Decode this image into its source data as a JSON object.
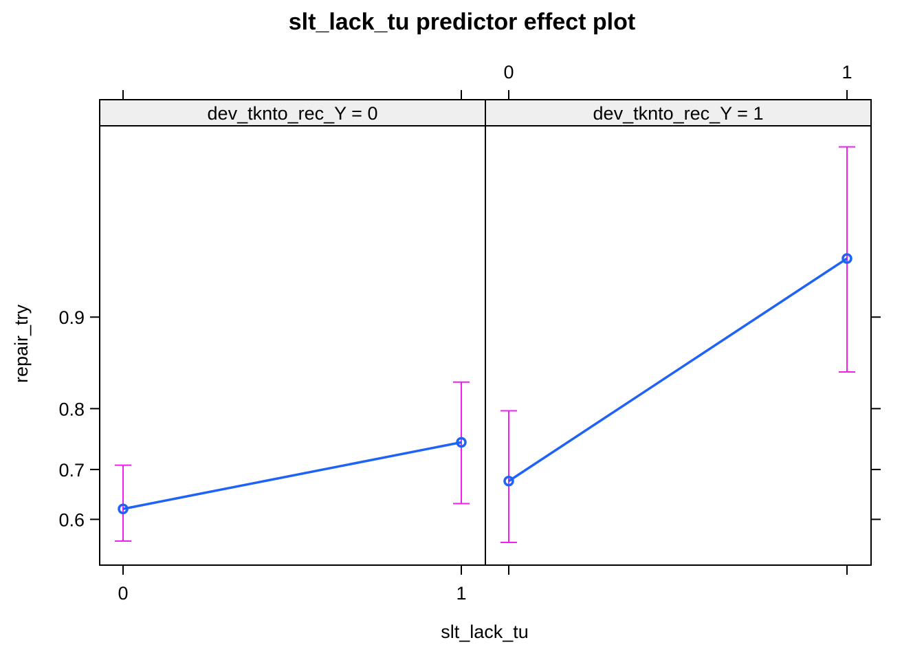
{
  "chart_data": {
    "type": "line",
    "title": "slt_lack_tu predictor effect plot",
    "xlabel": "slt_lack_tu",
    "ylabel": "repair_try",
    "x_ticks": [
      "0",
      "1"
    ],
    "y_ticks": [
      "0.6",
      "0.7",
      "0.8",
      "0.9"
    ],
    "y_scale": "logit",
    "ylim": [
      0.5,
      0.98
    ],
    "grid": false,
    "legend": "none",
    "colors": {
      "line": "#1f63f6",
      "ci": "#f01ff0"
    },
    "panels": [
      {
        "strip": "dev_tknto_rec_Y = 0",
        "x": [
          0,
          1
        ],
        "y": [
          0.622,
          0.748
        ],
        "lower": [
          0.553,
          0.633
        ],
        "upper": [
          0.708,
          0.835
        ]
      },
      {
        "strip": "dev_tknto_rec_Y = 1",
        "x": [
          0,
          1
        ],
        "y": [
          0.678,
          0.938
        ],
        "lower": [
          0.55,
          0.847
        ],
        "upper": [
          0.797,
          0.976
        ]
      }
    ]
  }
}
